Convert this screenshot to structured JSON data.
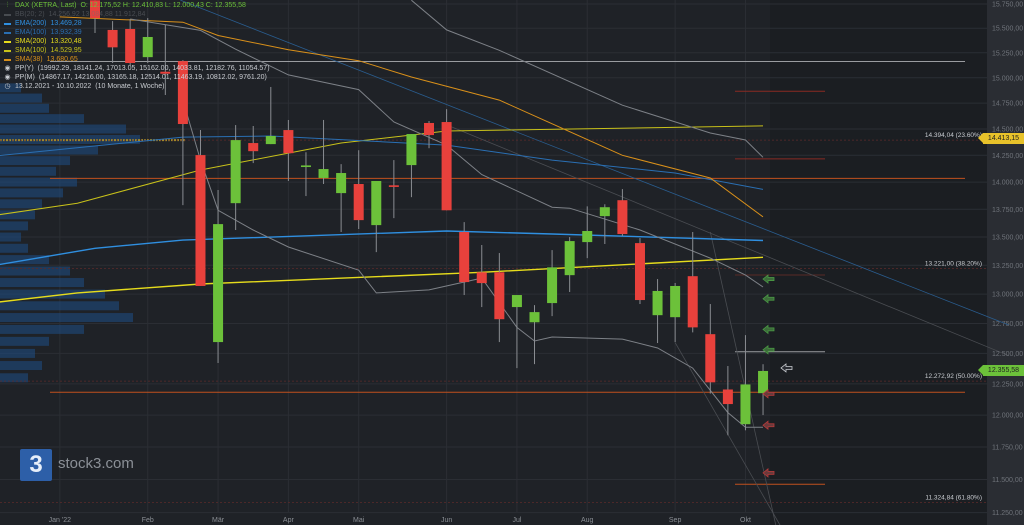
{
  "legend": {
    "instrument": "DAX (XETRA, Last)",
    "ohlc": "O: 12.175,52  H: 12.410,83  L: 12.000,43  C: 12.355,58",
    "indicators": [
      {
        "label": "BB(20; 2)",
        "value": "14.256,92  13.084,88  11.912,84",
        "color": "#6b6f75"
      },
      {
        "label": "EMA(200)",
        "value": "13.469,28",
        "color": "#2f8fe0"
      },
      {
        "label": "EMA(100)",
        "value": "13.932,39",
        "color": "#2a6fb3"
      },
      {
        "label": "SMA(200)",
        "value": "13.320,48",
        "color": "#e6dc1c"
      },
      {
        "label": "SMA(100)",
        "value": "14.529,95",
        "color": "#c9c21a"
      },
      {
        "label": "SMA(38)",
        "value": "13.680,65",
        "color": "#d9901a"
      }
    ],
    "pivots": [
      {
        "label": "PP(Y)",
        "value": "(19992.29, 18141.24, 17013.05, 15162.00, 14033.81, 12182.76, 11054.57)"
      },
      {
        "label": "PP(M)",
        "value": "(14867.17, 14216.00, 13165.18, 12514.01, 11463.19, 10812.02, 9761.20)"
      }
    ],
    "period": "13.12.2021 - 10.10.2022",
    "period_note": "(10 Monate, 1 Woche)"
  },
  "watermark": {
    "logo": "3",
    "text": "stock3.com"
  },
  "price_tags": [
    {
      "value": 14413.15,
      "label": "14.413,15",
      "color": "#e8c22a"
    },
    {
      "value": 12355.58,
      "label": "12.355,58",
      "color": "#6cc13a"
    }
  ],
  "chart_data": {
    "type": "candlestick",
    "interval": "1 week",
    "y_scale": "log",
    "ylim": [
      11200,
      15800
    ],
    "grid": true,
    "colors": {
      "up": "#6cc13a",
      "down": "#e8413c",
      "background": "#1f2227"
    },
    "y_ticks": [
      "15.750,00",
      "15.500,00",
      "15.250,00",
      "15.000,00",
      "14.750,00",
      "14.500,00",
      "14.250,00",
      "14.000,00",
      "13.750,00",
      "13.500,00",
      "13.250,00",
      "13.000,00",
      "12.750,00",
      "12.500,00",
      "12.250,00",
      "12.000,00",
      "11.750,00",
      "11.500,00",
      "11.250,00"
    ],
    "y_tick_values": [
      15750,
      15500,
      15250,
      15000,
      14750,
      14500,
      14250,
      14000,
      13750,
      13500,
      13250,
      13000,
      12750,
      12500,
      12250,
      12000,
      11750,
      11500,
      11250
    ],
    "x_ticks": [
      {
        "label": "Jan '22",
        "date": "2022-01-03"
      },
      {
        "label": "Feb",
        "date": "2022-02-07"
      },
      {
        "label": "Mär",
        "date": "2022-03-07"
      },
      {
        "label": "Apr",
        "date": "2022-04-04"
      },
      {
        "label": "Mai",
        "date": "2022-05-02"
      },
      {
        "label": "Jun",
        "date": "2022-06-06"
      },
      {
        "label": "Jul",
        "date": "2022-07-04"
      },
      {
        "label": "Aug",
        "date": "2022-08-01"
      },
      {
        "label": "Sep",
        "date": "2022-09-05"
      },
      {
        "label": "Okt",
        "date": "2022-10-03"
      }
    ],
    "candles": [
      {
        "date": "2022-01-17",
        "o": 15789,
        "h": 15789,
        "l": 15451,
        "c": 15604
      },
      {
        "date": "2022-01-24",
        "o": 15482,
        "h": 15573,
        "l": 15147,
        "c": 15305
      },
      {
        "date": "2022-01-31",
        "o": 15492,
        "h": 15594,
        "l": 15127,
        "c": 15147
      },
      {
        "date": "2022-02-07",
        "o": 15206,
        "h": 15604,
        "l": 15147,
        "c": 15410
      },
      {
        "date": "2022-02-14",
        "o": 15060,
        "h": 15533,
        "l": 14830,
        "c": 15040
      },
      {
        "date": "2022-02-21",
        "o": 15166,
        "h": 15176,
        "l": 13788,
        "c": 14548
      },
      {
        "date": "2022-02-28",
        "o": 14252,
        "h": 14490,
        "l": 13070,
        "c": 13070
      },
      {
        "date": "2022-03-07",
        "o": 12594,
        "h": 13927,
        "l": 12421,
        "c": 13616
      },
      {
        "date": "2022-03-14",
        "o": 13806,
        "h": 14538,
        "l": 13563,
        "c": 14394
      },
      {
        "date": "2022-03-21",
        "o": 14366,
        "h": 14529,
        "l": 14177,
        "c": 14289
      },
      {
        "date": "2022-03-28",
        "o": 14356,
        "h": 14909,
        "l": 14356,
        "c": 14433
      },
      {
        "date": "2022-04-04",
        "o": 14490,
        "h": 14587,
        "l": 14010,
        "c": 14270
      },
      {
        "date": "2022-04-11",
        "o": 14140,
        "h": 14279,
        "l": 13871,
        "c": 14155
      },
      {
        "date": "2022-04-18",
        "o": 14038,
        "h": 14587,
        "l": 13982,
        "c": 14121
      },
      {
        "date": "2022-04-25",
        "o": 13898,
        "h": 14167,
        "l": 13545,
        "c": 14084
      },
      {
        "date": "2022-05-02",
        "o": 13982,
        "h": 14298,
        "l": 13572,
        "c": 13652
      },
      {
        "date": "2022-05-09",
        "o": 13607,
        "h": 14010,
        "l": 13366,
        "c": 14010
      },
      {
        "date": "2022-05-16",
        "o": 13970,
        "h": 14205,
        "l": 13670,
        "c": 13955
      },
      {
        "date": "2022-05-23",
        "o": 14158,
        "h": 14452,
        "l": 13861,
        "c": 14452
      },
      {
        "date": "2022-05-30",
        "o": 14558,
        "h": 14577,
        "l": 14317,
        "c": 14442
      },
      {
        "date": "2022-06-06",
        "o": 14567,
        "h": 14692,
        "l": 13741,
        "c": 13741
      },
      {
        "date": "2022-06-13",
        "o": 13545,
        "h": 13634,
        "l": 12992,
        "c": 13104
      },
      {
        "date": "2022-06-20",
        "o": 13189,
        "h": 13429,
        "l": 12889,
        "c": 13095
      },
      {
        "date": "2022-06-27",
        "o": 13189,
        "h": 13358,
        "l": 12594,
        "c": 12786
      },
      {
        "date": "2022-07-04",
        "o": 12889,
        "h": 12992,
        "l": 12379,
        "c": 12992
      },
      {
        "date": "2022-07-11",
        "o": 12760,
        "h": 12906,
        "l": 12412,
        "c": 12846
      },
      {
        "date": "2022-07-18",
        "o": 12923,
        "h": 13384,
        "l": 12812,
        "c": 13232
      },
      {
        "date": "2022-07-25",
        "o": 13164,
        "h": 13500,
        "l": 13018,
        "c": 13464
      },
      {
        "date": "2022-08-01",
        "o": 13455,
        "h": 13777,
        "l": 13313,
        "c": 13554
      },
      {
        "date": "2022-08-08",
        "o": 13688,
        "h": 13796,
        "l": 13438,
        "c": 13769
      },
      {
        "date": "2022-08-15",
        "o": 13833,
        "h": 13935,
        "l": 13509,
        "c": 13527
      },
      {
        "date": "2022-08-22",
        "o": 13446,
        "h": 13491,
        "l": 12915,
        "c": 12949
      },
      {
        "date": "2022-08-29",
        "o": 12820,
        "h": 13130,
        "l": 12586,
        "c": 13027
      },
      {
        "date": "2022-09-05",
        "o": 12803,
        "h": 13096,
        "l": 12594,
        "c": 13070
      },
      {
        "date": "2022-09-12",
        "o": 13155,
        "h": 13545,
        "l": 12675,
        "c": 12717
      },
      {
        "date": "2022-09-19",
        "o": 12660,
        "h": 12915,
        "l": 12172,
        "c": 12263
      },
      {
        "date": "2022-09-26",
        "o": 12205,
        "h": 12396,
        "l": 11841,
        "c": 12088
      },
      {
        "date": "2022-10-03",
        "o": 11928,
        "h": 12652,
        "l": 11880,
        "c": 12246
      },
      {
        "date": "2022-10-10",
        "o": 12175.52,
        "h": 12410.83,
        "l": 12000.43,
        "c": 12355.58
      }
    ],
    "lines": [
      {
        "name": "EMA(200)",
        "color": "#2f8fe0",
        "width": 1.4,
        "points": [
          [
            "2021-12-06",
            13242
          ],
          [
            "2022-01-17",
            13400
          ],
          [
            "2022-02-21",
            13473
          ],
          [
            "2022-06-06",
            13554
          ],
          [
            "2022-07-18",
            13527
          ],
          [
            "2022-10-10",
            13469
          ]
        ]
      },
      {
        "name": "SMA(200)",
        "color": "#e6dc1c",
        "width": 1.4,
        "points": [
          [
            "2021-12-06",
            12923
          ],
          [
            "2022-01-10",
            13010
          ],
          [
            "2022-02-28",
            13087
          ],
          [
            "2022-06-20",
            13189
          ],
          [
            "2022-10-10",
            13320
          ]
        ]
      },
      {
        "name": "SMA(100)",
        "color": "#c9c21a",
        "width": 1,
        "points": [
          [
            "2021-12-06",
            13688
          ],
          [
            "2022-01-10",
            13806
          ],
          [
            "2022-02-28",
            14112
          ],
          [
            "2022-04-25",
            14366
          ],
          [
            "2022-06-06",
            14481
          ],
          [
            "2022-10-10",
            14530
          ]
        ]
      },
      {
        "name": "EMA(100)",
        "color": "#2a6fb3",
        "width": 1,
        "points": [
          [
            "2021-12-06",
            14238
          ],
          [
            "2022-02-21",
            14423
          ],
          [
            "2022-03-28",
            14433
          ],
          [
            "2022-06-06",
            14347
          ],
          [
            "2022-07-18",
            14205
          ],
          [
            "2022-09-05",
            14084
          ],
          [
            "2022-10-10",
            13932
          ]
        ]
      },
      {
        "name": "SMA(38)",
        "color": "#d9901a",
        "width": 1,
        "points": [
          [
            "2022-01-03",
            15616
          ],
          [
            "2022-02-21",
            15562
          ],
          [
            "2022-03-07",
            15425
          ],
          [
            "2022-04-04",
            15281
          ],
          [
            "2022-05-02",
            15170
          ],
          [
            "2022-05-23",
            15008
          ],
          [
            "2022-06-27",
            14780
          ],
          [
            "2022-08-15",
            14250
          ],
          [
            "2022-09-19",
            14038
          ],
          [
            "2022-10-10",
            13681
          ]
        ]
      },
      {
        "name": "BB upper",
        "color": "#7d8187",
        "width": 1,
        "points": [
          [
            "2022-05-23",
            15790
          ],
          [
            "2022-06-06",
            15482
          ],
          [
            "2022-06-27",
            15275
          ],
          [
            "2022-08-15",
            14730
          ],
          [
            "2022-09-19",
            14462
          ],
          [
            "2022-10-03",
            14395
          ],
          [
            "2022-10-10",
            14231
          ]
        ]
      },
      {
        "name": "BB middle",
        "color": "#7d8187",
        "width": 1,
        "points": [
          [
            "2022-01-31",
            15594
          ],
          [
            "2022-02-28",
            15477
          ],
          [
            "2022-03-14",
            15286
          ],
          [
            "2022-04-04",
            15028
          ],
          [
            "2022-05-02",
            14883
          ],
          [
            "2022-05-16",
            14567
          ],
          [
            "2022-06-06",
            14347
          ],
          [
            "2022-06-20",
            14069
          ],
          [
            "2022-07-18",
            13769
          ],
          [
            "2022-07-25",
            13760
          ],
          [
            "2022-08-22",
            13563
          ],
          [
            "2022-09-19",
            13313
          ],
          [
            "2022-10-03",
            13164
          ],
          [
            "2022-10-10",
            13061
          ]
        ]
      },
      {
        "name": "BB lower",
        "color": "#7d8187",
        "width": 1,
        "points": [
          [
            "2022-02-21",
            14780
          ],
          [
            "2022-02-28",
            14205
          ],
          [
            "2022-03-07",
            13741
          ],
          [
            "2022-03-21",
            13563
          ],
          [
            "2022-04-04",
            13411
          ],
          [
            "2022-05-02",
            13207
          ],
          [
            "2022-05-09",
            13010
          ],
          [
            "2022-05-30",
            13036
          ],
          [
            "2022-06-20",
            13138
          ],
          [
            "2022-07-04",
            12717
          ],
          [
            "2022-07-11",
            12603
          ],
          [
            "2022-07-18",
            12636
          ],
          [
            "2022-08-15",
            12619
          ],
          [
            "2022-08-29",
            12545
          ],
          [
            "2022-09-12",
            12379
          ],
          [
            "2022-09-26",
            12020
          ],
          [
            "2022-10-03",
            11904
          ],
          [
            "2022-10-10",
            11904
          ]
        ]
      }
    ],
    "trendlines": [
      {
        "color": "#2a5d8f",
        "from": [
          "2022-02-20",
          15790
        ],
        "to": [
          "2023-01-16",
          12736
        ]
      },
      {
        "color": "#4a4d52",
        "from": [
          "2022-06-06",
          14540
        ],
        "to": [
          "2023-01-16",
          12480
        ]
      },
      {
        "color": "#4a4d52",
        "from": [
          "2022-09-19",
          13545
        ],
        "to": [
          "2022-10-17",
          11000
        ]
      },
      {
        "color": "#4a4d52",
        "from": [
          "2022-09-05",
          12590
        ],
        "to": [
          "2022-10-17",
          11150
        ]
      }
    ],
    "pivot_levels": [
      {
        "value": 15162.0,
        "color": "#9a9ca0",
        "span": "full"
      },
      {
        "value": 14033.81,
        "color": "#c0501e",
        "span": "full"
      },
      {
        "value": 12182.76,
        "color": "#c0501e",
        "span": "full"
      },
      {
        "value": 14867.17,
        "color": "#8a2a22",
        "span": "recent"
      },
      {
        "value": 14216.0,
        "color": "#8a2a22",
        "span": "recent"
      },
      {
        "value": 13165.18,
        "color": "#5a2a26",
        "span": "recent"
      },
      {
        "value": 12514.01,
        "color": "#9a9ca0",
        "span": "recent"
      },
      {
        "value": 11463.19,
        "color": "#c0501e",
        "span": "recent"
      }
    ],
    "fibonacci": [
      {
        "value": 14394.04,
        "label": "14.394,04 (23.60%)"
      },
      {
        "value": 13221.0,
        "label": "13.221,00 (38.20%)"
      },
      {
        "value": 12272.92,
        "label": "12.272,92 (50.00%)"
      },
      {
        "value": 11324.84,
        "label": "11.324,84 (61.80%)"
      }
    ],
    "signal_arrows": [
      {
        "value": 13130,
        "type": "buy"
      },
      {
        "value": 12960,
        "type": "buy"
      },
      {
        "value": 12700,
        "type": "buy"
      },
      {
        "value": 12530,
        "type": "buy"
      },
      {
        "value": 12380,
        "type": "current"
      },
      {
        "value": 12170,
        "type": "sell"
      },
      {
        "value": 11920,
        "type": "sell"
      },
      {
        "value": 11550,
        "type": "sell"
      }
    ],
    "volume_profile_poc": 14394,
    "volume_profile": [
      [
        14900,
        0.15
      ],
      [
        14800,
        0.3
      ],
      [
        14700,
        0.35
      ],
      [
        14600,
        0.6
      ],
      [
        14500,
        0.9
      ],
      [
        14400,
        1.0
      ],
      [
        14300,
        0.7
      ],
      [
        14200,
        0.5
      ],
      [
        14100,
        0.4
      ],
      [
        14000,
        0.55
      ],
      [
        13900,
        0.45
      ],
      [
        13800,
        0.3
      ],
      [
        13700,
        0.25
      ],
      [
        13600,
        0.2
      ],
      [
        13500,
        0.15
      ],
      [
        13400,
        0.2
      ],
      [
        13300,
        0.35
      ],
      [
        13200,
        0.5
      ],
      [
        13100,
        0.6
      ],
      [
        13000,
        0.75
      ],
      [
        12900,
        0.85
      ],
      [
        12800,
        0.95
      ],
      [
        12700,
        0.6
      ],
      [
        12600,
        0.35
      ],
      [
        12500,
        0.25
      ],
      [
        12400,
        0.3
      ],
      [
        12300,
        0.2
      ]
    ]
  }
}
